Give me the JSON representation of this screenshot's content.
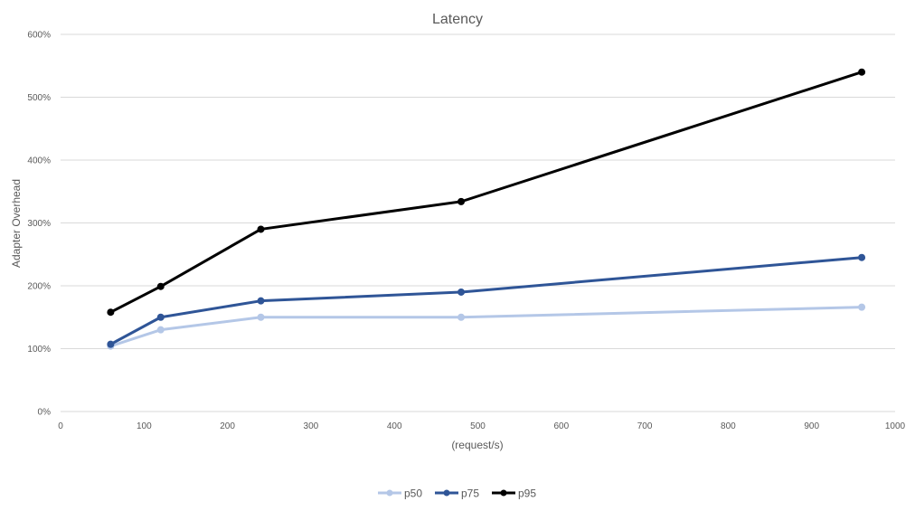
{
  "chart_data": {
    "type": "scatter",
    "title": "Latency",
    "xlabel": "(request/s)",
    "ylabel": "Adapter Overhead",
    "xlim": [
      0,
      1000
    ],
    "ylim": [
      0,
      600
    ],
    "xticks": [
      0,
      100,
      200,
      300,
      400,
      500,
      600,
      700,
      800,
      900,
      1000
    ],
    "yticks": [
      0,
      100,
      200,
      300,
      400,
      500,
      600
    ],
    "ytick_format": "percent",
    "grid": "horizontal",
    "legend_position": "bottom",
    "markers": true,
    "series": [
      {
        "name": "p50",
        "color": "#b4c7e7",
        "x": [
          60,
          120,
          240,
          480,
          960
        ],
        "y": [
          104,
          130,
          150,
          150,
          166
        ]
      },
      {
        "name": "p75",
        "color": "#2f5597",
        "x": [
          60,
          120,
          240,
          480,
          960
        ],
        "y": [
          107,
          150,
          176,
          190,
          245
        ]
      },
      {
        "name": "p95",
        "color": "#000000",
        "x": [
          60,
          120,
          240,
          480,
          960
        ],
        "y": [
          158,
          199,
          290,
          334,
          540
        ]
      }
    ]
  }
}
